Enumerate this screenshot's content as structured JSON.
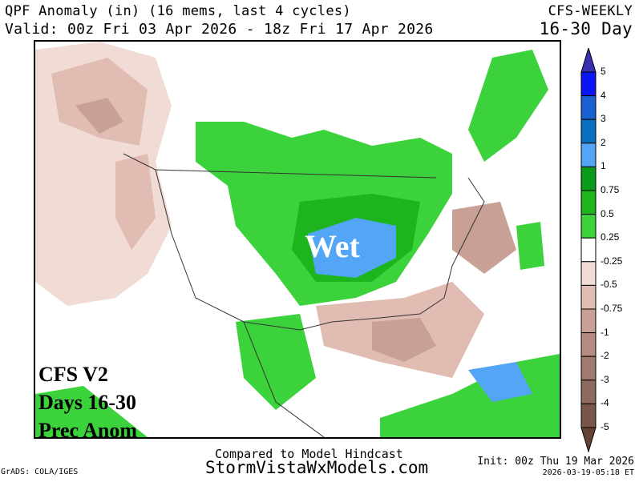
{
  "header": {
    "title": "QPF Anomaly (in) (16 mems, last 4 cycles)",
    "valid": "Valid: 00z Fri 03 Apr 2026 - 18z Fri 17 Apr 2026",
    "model": "CFS-WEEKLY",
    "range": "16-30 Day"
  },
  "map": {
    "wet_label": "Wet",
    "overlay_lines": [
      "CFS V2",
      "Days 16-30",
      "Prec Anom"
    ]
  },
  "colorbar": {
    "labels": [
      "5",
      "4",
      "3",
      "2",
      "1",
      "0.75",
      "0.5",
      "0.25",
      "-0.25",
      "-0.5",
      "-0.75",
      "-1",
      "-2",
      "-3",
      "-4",
      "-5"
    ],
    "colors": [
      "#3a2fb0",
      "#0a14f5",
      "#1a60d0",
      "#0b6fc0",
      "#52a6f5",
      "#0a9a1c",
      "#1eb41e",
      "#3cd23c",
      "#ffffff",
      "#f0dcd4",
      "#e0bcb2",
      "#c8a096",
      "#b48c82",
      "#a07a70",
      "#8c6a60",
      "#78564c",
      "#644238"
    ]
  },
  "footer": {
    "compared": "Compared to Model Hindcast",
    "site": "StormVistaWxModels.com",
    "grads": "GrADS: COLA/IGES",
    "init": "Init: 00z Thu 19 Mar 2026",
    "timestamp": "2026-03-19-05:18 ET"
  }
}
